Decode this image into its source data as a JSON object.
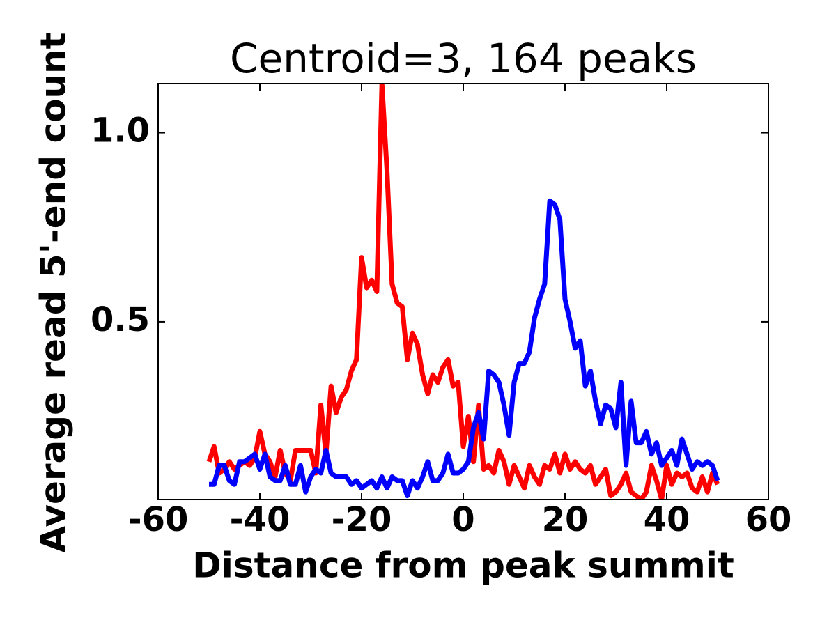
{
  "chart_data": {
    "type": "line",
    "title": "Centroid=3, 164 peaks",
    "x_label": "Distance from peak summit",
    "y_label": "Average read 5'-end count",
    "x": [
      -50,
      -49,
      -48,
      -47,
      -46,
      -45,
      -44,
      -43,
      -42,
      -41,
      -40,
      -39,
      -38,
      -37,
      -36,
      -35,
      -34,
      -33,
      -32,
      -31,
      -30,
      -29,
      -28,
      -27,
      -26,
      -25,
      -24,
      -23,
      -22,
      -21,
      -20,
      -19,
      -18,
      -17,
      -16,
      -15,
      -14,
      -13,
      -12,
      -11,
      -10,
      -9,
      -8,
      -7,
      -6,
      -5,
      -4,
      -3,
      -2,
      -1,
      0,
      1,
      2,
      3,
      4,
      5,
      6,
      7,
      8,
      9,
      10,
      11,
      12,
      13,
      14,
      15,
      16,
      17,
      18,
      19,
      20,
      21,
      22,
      23,
      24,
      25,
      26,
      27,
      28,
      29,
      30,
      31,
      32,
      33,
      34,
      35,
      36,
      37,
      38,
      39,
      40,
      41,
      42,
      43,
      44,
      45,
      46,
      47,
      48,
      49,
      50
    ],
    "series": [
      {
        "color": "#ff0000",
        "values": [
          0.13,
          0.17,
          0.1,
          0.11,
          0.13,
          0.11,
          0.12,
          0.13,
          0.12,
          0.14,
          0.21,
          0.15,
          0.13,
          0.09,
          0.16,
          0.1,
          0.08,
          0.16,
          0.16,
          0.16,
          0.16,
          0.1,
          0.28,
          0.15,
          0.33,
          0.26,
          0.3,
          0.32,
          0.37,
          0.4,
          0.67,
          0.59,
          0.61,
          0.58,
          1.13,
          0.9,
          0.6,
          0.55,
          0.54,
          0.4,
          0.47,
          0.44,
          0.36,
          0.31,
          0.36,
          0.34,
          0.38,
          0.4,
          0.33,
          0.34,
          0.17,
          0.25,
          0.13,
          0.28,
          0.11,
          0.12,
          0.1,
          0.16,
          0.13,
          0.07,
          0.12,
          0.09,
          0.06,
          0.12,
          0.09,
          0.07,
          0.12,
          0.11,
          0.15,
          0.1,
          0.15,
          0.11,
          0.13,
          0.11,
          0.1,
          0.12,
          0.07,
          0.09,
          0.11,
          0.04,
          0.05,
          0.07,
          0.1,
          0.05,
          0.04,
          0.03,
          0.05,
          0.12,
          0.08,
          0.03,
          0.12,
          0.07,
          0.1,
          0.09,
          0.1,
          0.06,
          0.05,
          0.09,
          0.05,
          0.1,
          0.07
        ]
      },
      {
        "color": "#0000ff",
        "values": [
          0.07,
          0.07,
          0.12,
          0.12,
          0.08,
          0.07,
          0.13,
          0.13,
          0.14,
          0.15,
          0.11,
          0.15,
          0.09,
          0.08,
          0.08,
          0.12,
          0.07,
          0.07,
          0.12,
          0.05,
          0.09,
          0.11,
          0.1,
          0.16,
          0.1,
          0.09,
          0.09,
          0.09,
          0.07,
          0.08,
          0.06,
          0.07,
          0.08,
          0.06,
          0.09,
          0.06,
          0.09,
          0.08,
          0.08,
          0.04,
          0.08,
          0.06,
          0.09,
          0.13,
          0.08,
          0.08,
          0.1,
          0.15,
          0.1,
          0.1,
          0.11,
          0.13,
          0.22,
          0.26,
          0.19,
          0.37,
          0.36,
          0.34,
          0.28,
          0.2,
          0.34,
          0.39,
          0.39,
          0.42,
          0.51,
          0.56,
          0.6,
          0.82,
          0.81,
          0.77,
          0.56,
          0.5,
          0.43,
          0.45,
          0.33,
          0.37,
          0.29,
          0.23,
          0.28,
          0.27,
          0.22,
          0.34,
          0.12,
          0.29,
          0.18,
          0.18,
          0.21,
          0.15,
          0.18,
          0.12,
          0.14,
          0.16,
          0.12,
          0.19,
          0.15,
          0.11,
          0.13,
          0.12,
          0.13,
          0.12,
          0.08
        ]
      }
    ],
    "xlim": [
      -60,
      60
    ],
    "xticks": [
      -60,
      -40,
      -20,
      0,
      20,
      40,
      60
    ],
    "ylim": [
      0.03,
      1.13
    ],
    "yticks": [
      0.5,
      1.0
    ]
  }
}
